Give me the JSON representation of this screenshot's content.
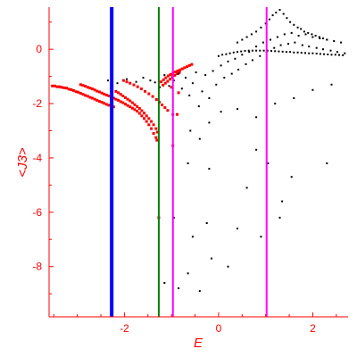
{
  "chart_data": {
    "type": "scatter",
    "title": "",
    "xlabel": "E",
    "ylabel": "<J3>",
    "xlim": [
      -3.6,
      2.75
    ],
    "ylim": [
      -9.85,
      1.55
    ],
    "x_ticks": [
      -2,
      0,
      2
    ],
    "y_ticks": [
      0,
      -2,
      -4,
      -6,
      -8
    ],
    "x_tick_labels": [
      "-2",
      "0",
      "2"
    ],
    "y_tick_labels": [
      "0",
      "-2",
      "-4",
      "-6",
      "-8"
    ],
    "axis_color": "#ff0000",
    "grid": false,
    "vertical_lines": [
      {
        "x": -2.27,
        "color": "#0000ff"
      },
      {
        "x": -1.27,
        "color": "#008000"
      },
      {
        "x": -0.97,
        "color": "#ff00ff"
      },
      {
        "x": 1.02,
        "color": "#ff00ff"
      }
    ],
    "series": [
      {
        "color": "#ff0000",
        "points": [
          [
            -3.53,
            -1.35
          ],
          [
            -3.48,
            -1.35
          ],
          [
            -3.43,
            -1.38
          ],
          [
            -3.38,
            -1.38
          ],
          [
            -3.33,
            -1.4
          ],
          [
            -3.28,
            -1.42
          ],
          [
            -3.23,
            -1.43
          ],
          [
            -3.18,
            -1.47
          ],
          [
            -3.13,
            -1.49
          ],
          [
            -3.08,
            -1.52
          ],
          [
            -3.03,
            -1.56
          ],
          [
            -2.98,
            -1.58
          ],
          [
            -2.93,
            -1.62
          ],
          [
            -2.88,
            -1.66
          ],
          [
            -2.83,
            -1.7
          ],
          [
            -2.78,
            -1.73
          ],
          [
            -2.73,
            -1.77
          ],
          [
            -2.68,
            -1.8
          ],
          [
            -2.63,
            -1.84
          ],
          [
            -2.58,
            -1.88
          ],
          [
            -2.53,
            -1.92
          ],
          [
            -2.48,
            -1.95
          ],
          [
            -2.43,
            -1.99
          ],
          [
            -2.38,
            -2.03
          ],
          [
            -2.33,
            -2.06
          ],
          [
            -2.28,
            -2.09
          ],
          [
            -2.23,
            -2.12
          ],
          [
            -2.93,
            -1.3
          ],
          [
            -2.88,
            -1.33
          ],
          [
            -2.83,
            -1.36
          ],
          [
            -2.78,
            -1.4
          ],
          [
            -2.73,
            -1.43
          ],
          [
            -2.68,
            -1.46
          ],
          [
            -2.63,
            -1.5
          ],
          [
            -2.58,
            -1.54
          ],
          [
            -2.53,
            -1.57
          ],
          [
            -2.48,
            -1.61
          ],
          [
            -2.43,
            -1.65
          ],
          [
            -2.38,
            -1.69
          ],
          [
            -2.33,
            -1.72
          ],
          [
            -2.28,
            -1.76
          ],
          [
            -2.23,
            -1.8
          ],
          [
            -2.18,
            -1.84
          ],
          [
            -2.13,
            -1.88
          ],
          [
            -2.08,
            -1.93
          ],
          [
            -2.03,
            -1.97
          ],
          [
            -1.98,
            -2.02
          ],
          [
            -1.93,
            -2.07
          ],
          [
            -1.88,
            -2.12
          ],
          [
            -1.83,
            -2.17
          ],
          [
            -1.78,
            -2.22
          ],
          [
            -1.73,
            -2.28
          ],
          [
            -1.68,
            -2.36
          ],
          [
            -1.63,
            -2.45
          ],
          [
            -1.58,
            -2.55
          ],
          [
            -1.53,
            -2.66
          ],
          [
            -1.48,
            -2.78
          ],
          [
            -1.43,
            -2.92
          ],
          [
            -1.38,
            -3.1
          ],
          [
            -1.33,
            -3.25
          ],
          [
            -1.31,
            -3.35
          ],
          [
            -2.18,
            -1.55
          ],
          [
            -2.13,
            -1.6
          ],
          [
            -2.08,
            -1.66
          ],
          [
            -2.03,
            -1.72
          ],
          [
            -1.98,
            -1.78
          ],
          [
            -1.93,
            -1.84
          ],
          [
            -1.88,
            -1.9
          ],
          [
            -1.83,
            -1.97
          ],
          [
            -1.78,
            -2.04
          ],
          [
            -1.73,
            -2.11
          ],
          [
            -1.68,
            -2.18
          ],
          [
            -1.63,
            -2.26
          ],
          [
            -1.58,
            -2.35
          ],
          [
            -1.53,
            -2.45
          ],
          [
            -1.48,
            -2.55
          ],
          [
            -1.43,
            -2.66
          ],
          [
            -1.38,
            -2.78
          ],
          [
            -1.33,
            -2.92
          ],
          [
            -1.3,
            -3.05
          ],
          [
            -2.02,
            -1.15
          ],
          [
            -1.95,
            -1.2
          ],
          [
            -1.88,
            -1.25
          ],
          [
            -1.8,
            -1.31
          ],
          [
            -1.72,
            -1.38
          ],
          [
            -1.64,
            -1.46
          ],
          [
            -1.56,
            -1.55
          ],
          [
            -1.48,
            -1.64
          ],
          [
            -1.4,
            -1.74
          ],
          [
            -1.32,
            -1.85
          ],
          [
            -1.26,
            -1.95
          ],
          [
            -1.2,
            -2.05
          ],
          [
            -1.14,
            -2.15
          ],
          [
            -1.08,
            -2.25
          ],
          [
            -0.97,
            -2.4
          ],
          [
            -0.88,
            -2.4
          ],
          [
            -1.22,
            -1.2
          ],
          [
            -1.17,
            -1.12
          ],
          [
            -1.12,
            -1.05
          ],
          [
            -1.07,
            -0.98
          ],
          [
            -1.02,
            -0.93
          ],
          [
            -0.97,
            -0.88
          ],
          [
            -0.92,
            -0.84
          ],
          [
            -0.87,
            -0.8
          ],
          [
            -0.82,
            -0.76
          ],
          [
            -0.77,
            -0.72
          ],
          [
            -0.72,
            -0.68
          ],
          [
            -0.67,
            -0.64
          ],
          [
            -0.62,
            -0.6
          ],
          [
            -0.57,
            -0.56
          ],
          [
            -1.18,
            -1.32
          ],
          [
            -1.13,
            -1.25
          ],
          [
            -1.08,
            -1.18
          ],
          [
            -1.03,
            -1.1
          ],
          [
            -0.98,
            -1.03
          ],
          [
            -0.93,
            -0.96
          ],
          [
            -0.88,
            -0.9
          ],
          [
            -0.83,
            -0.85
          ],
          [
            -0.97,
            -3.55
          ],
          [
            -1.27,
            -6.2
          ],
          [
            -1.0,
            -1.4
          ],
          [
            -0.85,
            -1.6
          ]
        ]
      },
      {
        "color": "#000000",
        "points": [
          [
            -2.35,
            -1.15
          ],
          [
            -2.15,
            -1.25
          ],
          [
            -1.95,
            -1.1
          ],
          [
            -1.75,
            -1.2
          ],
          [
            -1.6,
            -1.05
          ],
          [
            -1.45,
            -1.15
          ],
          [
            -1.35,
            -1.22
          ],
          [
            -1.25,
            -1.4
          ],
          [
            -1.15,
            -0.95
          ],
          [
            -1.05,
            -1.35
          ],
          [
            -0.95,
            -1.15
          ],
          [
            -0.85,
            -0.9
          ],
          [
            -0.78,
            -1.45
          ],
          [
            -0.7,
            -1.05
          ],
          [
            -0.62,
            -1.7
          ],
          [
            -0.55,
            -1.25
          ],
          [
            -0.48,
            -0.85
          ],
          [
            -0.42,
            -2.1
          ],
          [
            -0.35,
            -1.55
          ],
          [
            -0.28,
            -0.95
          ],
          [
            -0.2,
            -1.8
          ],
          [
            -0.12,
            -0.8
          ],
          [
            -0.05,
            -1.3
          ],
          [
            0.05,
            -0.6
          ],
          [
            0.12,
            -1.05
          ],
          [
            0.2,
            -0.45
          ],
          [
            0.28,
            -0.9
          ],
          [
            0.35,
            -0.35
          ],
          [
            0.42,
            -0.75
          ],
          [
            0.5,
            -0.2
          ],
          [
            0.58,
            -0.55
          ],
          [
            0.65,
            -0.1
          ],
          [
            0.72,
            -0.4
          ],
          [
            0.8,
            0.1
          ],
          [
            0.88,
            -0.25
          ],
          [
            0.95,
            0.25
          ],
          [
            1.02,
            -0.1
          ],
          [
            1.1,
            0.35
          ],
          [
            1.18,
            0.05
          ],
          [
            1.25,
            0.45
          ],
          [
            1.32,
            0.15
          ],
          [
            1.4,
            0.55
          ],
          [
            1.48,
            0.2
          ],
          [
            1.55,
            0.6
          ],
          [
            1.62,
            0.25
          ],
          [
            1.7,
            0.5
          ],
          [
            1.78,
            0.15
          ],
          [
            1.85,
            0.55
          ],
          [
            1.92,
            0.1
          ],
          [
            2.0,
            0.45
          ],
          [
            2.08,
            0.05
          ],
          [
            2.15,
            0.4
          ],
          [
            2.22,
            0.0
          ],
          [
            2.3,
            0.35
          ],
          [
            2.38,
            -0.05
          ],
          [
            2.45,
            0.3
          ],
          [
            2.52,
            -0.1
          ],
          [
            2.6,
            0.25
          ],
          [
            2.68,
            -0.15
          ],
          [
            0.0,
            -0.25
          ],
          [
            0.08,
            -0.2
          ],
          [
            0.16,
            -0.18
          ],
          [
            0.24,
            -0.15
          ],
          [
            0.32,
            -0.12
          ],
          [
            0.4,
            -0.1
          ],
          [
            0.48,
            -0.08
          ],
          [
            0.56,
            -0.06
          ],
          [
            0.64,
            -0.05
          ],
          [
            0.72,
            -0.05
          ],
          [
            0.8,
            -0.05
          ],
          [
            0.88,
            -0.05
          ],
          [
            0.96,
            -0.05
          ],
          [
            1.04,
            -0.05
          ],
          [
            1.12,
            -0.06
          ],
          [
            1.2,
            -0.07
          ],
          [
            1.28,
            -0.08
          ],
          [
            1.36,
            -0.09
          ],
          [
            1.44,
            -0.1
          ],
          [
            1.52,
            -0.1
          ],
          [
            1.6,
            -0.12
          ],
          [
            1.68,
            -0.12
          ],
          [
            1.76,
            -0.13
          ],
          [
            1.84,
            -0.14
          ],
          [
            1.92,
            -0.15
          ],
          [
            2.0,
            -0.15
          ],
          [
            2.08,
            -0.16
          ],
          [
            2.16,
            -0.17
          ],
          [
            2.24,
            -0.18
          ],
          [
            2.32,
            -0.19
          ],
          [
            2.4,
            -0.2
          ],
          [
            2.48,
            -0.2
          ],
          [
            2.56,
            -0.21
          ],
          [
            2.64,
            -0.22
          ],
          [
            0.4,
            0.25
          ],
          [
            0.5,
            0.35
          ],
          [
            0.6,
            0.45
          ],
          [
            0.7,
            0.55
          ],
          [
            0.8,
            0.65
          ],
          [
            0.9,
            0.8
          ],
          [
            1.0,
            0.95
          ],
          [
            1.08,
            1.1
          ],
          [
            1.15,
            1.25
          ],
          [
            1.22,
            1.35
          ],
          [
            1.3,
            1.45
          ],
          [
            1.38,
            1.3
          ],
          [
            1.45,
            1.15
          ],
          [
            1.52,
            1.0
          ],
          [
            1.6,
            0.9
          ],
          [
            1.68,
            0.8
          ],
          [
            1.75,
            0.75
          ],
          [
            1.82,
            0.65
          ],
          [
            1.9,
            0.6
          ],
          [
            1.98,
            0.55
          ],
          [
            2.06,
            0.5
          ],
          [
            2.14,
            0.45
          ],
          [
            2.22,
            0.4
          ],
          [
            2.3,
            0.35
          ],
          [
            -0.6,
            -3.0
          ],
          [
            -0.4,
            -3.3
          ],
          [
            -0.2,
            -2.7
          ],
          [
            0.05,
            -2.3
          ],
          [
            0.4,
            -2.2
          ],
          [
            0.8,
            -2.5
          ],
          [
            1.2,
            -2.0
          ],
          [
            1.6,
            -1.8
          ],
          [
            2.0,
            -1.5
          ],
          [
            2.4,
            -1.3
          ],
          [
            -0.65,
            -4.2
          ],
          [
            -0.2,
            -4.4
          ],
          [
            0.6,
            -5.1
          ],
          [
            0.8,
            -3.7
          ],
          [
            1.55,
            -4.7
          ],
          [
            2.3,
            -4.2
          ],
          [
            -0.95,
            -6.2
          ],
          [
            -0.55,
            -6.9
          ],
          [
            -0.25,
            -6.4
          ],
          [
            0.4,
            -6.6
          ],
          [
            0.9,
            -6.9
          ],
          [
            1.3,
            -6.2
          ],
          [
            1.35,
            -5.6
          ],
          [
            1.05,
            -4.2
          ],
          [
            -0.65,
            -8.25
          ],
          [
            -0.15,
            -7.7
          ],
          [
            0.2,
            -8.0
          ],
          [
            -1.15,
            -8.6
          ],
          [
            -0.85,
            -8.8
          ],
          [
            -0.4,
            -8.9
          ]
        ]
      }
    ]
  }
}
